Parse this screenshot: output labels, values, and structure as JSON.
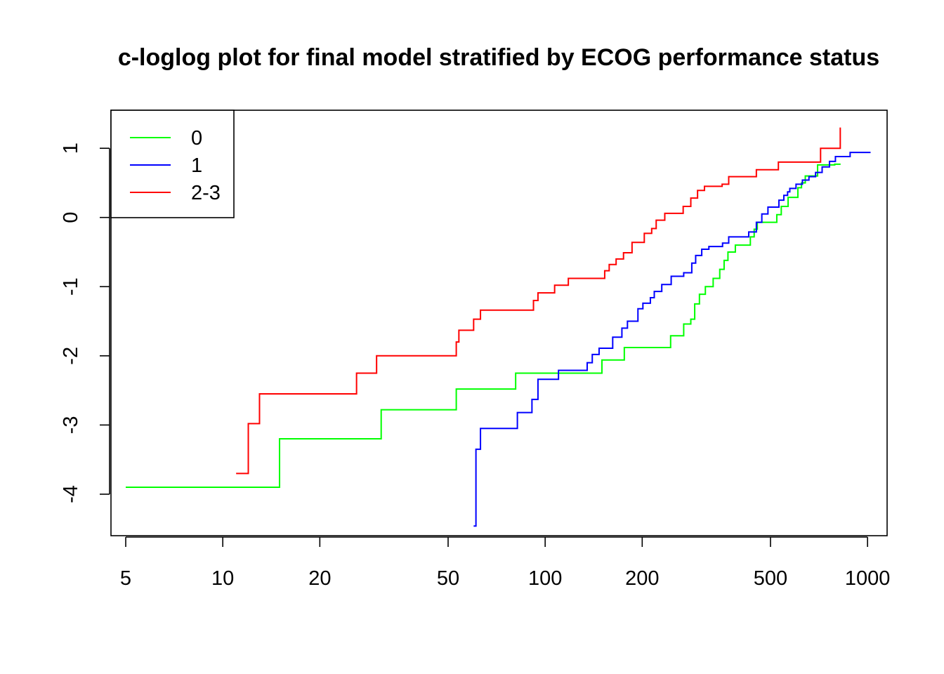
{
  "chart_data": {
    "type": "line",
    "title": "c-loglog plot for final model stratified by ECOG performance status",
    "xlabel": "",
    "ylabel": "",
    "xscale": "log",
    "xlim": [
      4.5,
      1150
    ],
    "ylim": [
      -4.6,
      1.55
    ],
    "xticks": [
      5,
      10,
      20,
      50,
      100,
      200,
      500,
      1000
    ],
    "xtick_labels": [
      "5",
      "10",
      "20",
      "50",
      "100",
      "200",
      "500",
      "1000"
    ],
    "yticks": [
      -4,
      -3,
      -2,
      -1,
      0,
      1
    ],
    "ytick_labels": [
      "-4",
      "-3",
      "-2",
      "-1",
      "0",
      "1"
    ],
    "grid": false,
    "legend_position": "top-left",
    "step": true,
    "series": [
      {
        "name": "0",
        "color": "#00ff00",
        "x": [
          5,
          15,
          31,
          53,
          81,
          150,
          176,
          245,
          269,
          283,
          291,
          301,
          314,
          332,
          348,
          359,
          369,
          389,
          433,
          445,
          455,
          523,
          540,
          567,
          608,
          624,
          641,
          700,
          791,
          825
        ],
        "y": [
          -3.9,
          -3.2,
          -2.78,
          -2.48,
          -2.25,
          -2.06,
          -1.88,
          -1.71,
          -1.54,
          -1.47,
          -1.25,
          -1.11,
          -1.0,
          -0.88,
          -0.75,
          -0.62,
          -0.5,
          -0.4,
          -0.28,
          -0.17,
          -0.07,
          0.04,
          0.16,
          0.29,
          0.43,
          0.5,
          0.6,
          0.76,
          0.77,
          0.77
        ]
      },
      {
        "name": "1",
        "color": "#0000ff",
        "x": [
          60,
          61,
          63,
          82,
          91,
          95,
          110,
          135,
          140,
          147,
          162,
          173,
          180,
          194,
          201,
          212,
          218,
          230,
          246,
          269,
          285,
          293,
          306,
          322,
          355,
          371,
          428,
          452,
          470,
          491,
          531,
          550,
          565,
          574,
          600,
          628,
          658,
          690,
          723,
          762,
          795,
          883,
          1022
        ],
        "y": [
          -4.46,
          -3.35,
          -3.05,
          -2.82,
          -2.63,
          -2.34,
          -2.21,
          -2.1,
          -1.98,
          -1.89,
          -1.73,
          -1.6,
          -1.5,
          -1.32,
          -1.24,
          -1.16,
          -1.07,
          -0.97,
          -0.85,
          -0.8,
          -0.66,
          -0.55,
          -0.46,
          -0.42,
          -0.37,
          -0.28,
          -0.21,
          -0.07,
          0.05,
          0.15,
          0.25,
          0.32,
          0.37,
          0.42,
          0.48,
          0.54,
          0.59,
          0.65,
          0.73,
          0.81,
          0.88,
          0.94,
          0.94
        ]
      },
      {
        "name": "2-3",
        "color": "#ff0000",
        "x": [
          11,
          12,
          13,
          26,
          30,
          53,
          54,
          60,
          63,
          92,
          95,
          107,
          118,
          153,
          158,
          166,
          175,
          186,
          203,
          214,
          221,
          235,
          268,
          283,
          297,
          312,
          354,
          371,
          452,
          529,
          715,
          823
        ],
        "y": [
          -3.7,
          -2.98,
          -2.55,
          -2.25,
          -2.0,
          -1.8,
          -1.63,
          -1.47,
          -1.34,
          -1.2,
          -1.09,
          -0.98,
          -0.88,
          -0.77,
          -0.68,
          -0.6,
          -0.51,
          -0.36,
          -0.23,
          -0.16,
          -0.04,
          0.06,
          0.16,
          0.28,
          0.39,
          0.45,
          0.48,
          0.59,
          0.69,
          0.8,
          1.0,
          1.3
        ]
      }
    ]
  }
}
